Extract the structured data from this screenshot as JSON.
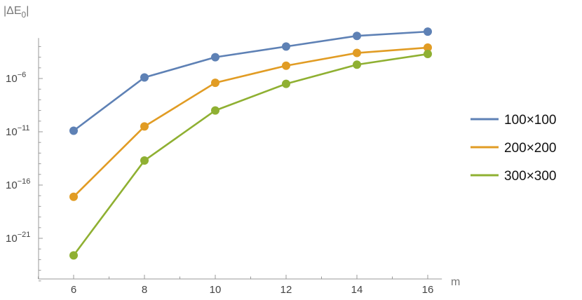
{
  "chart_data": {
    "type": "line",
    "title": "",
    "xlabel": "m",
    "ylabel": "|ΔE0|",
    "ylabel_parts": {
      "main": "|ΔE",
      "sub": "0",
      "close": "|"
    },
    "x_scale": "linear",
    "y_scale": "log",
    "xlim": [
      5,
      16.4
    ],
    "ylim_log10": [
      -25.5,
      -2.2
    ],
    "x_ticks": [
      6,
      8,
      10,
      12,
      14,
      16
    ],
    "y_ticks_log10": [
      -6,
      -11,
      -16,
      -21
    ],
    "y_tick_base": "10",
    "grid": false,
    "legend_position": "right",
    "x": [
      6,
      8,
      10,
      12,
      14,
      16
    ],
    "series": [
      {
        "name": "100×100",
        "color": "#5e81b5",
        "log10_values": [
          -10.9,
          -5.9,
          -4.0,
          -3.0,
          -2.0,
          -1.6
        ]
      },
      {
        "name": "200×200",
        "color": "#e19c24",
        "log10_values": [
          -17.1,
          -10.5,
          -6.4,
          -4.8,
          -3.6,
          -3.1
        ]
      },
      {
        "name": "300×300",
        "color": "#8fb032",
        "log10_values": [
          -22.6,
          -13.7,
          -9.0,
          -6.5,
          -4.7,
          -3.7
        ]
      }
    ]
  }
}
